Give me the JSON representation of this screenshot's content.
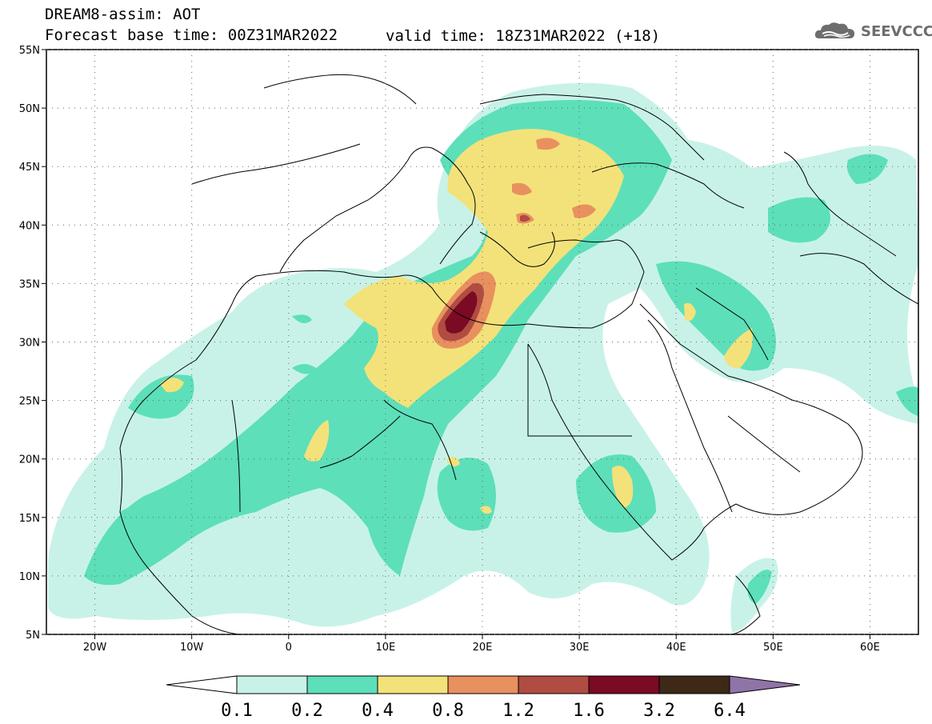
{
  "header": {
    "title": "DREAM8-assim: AOT",
    "forecast_base": "Forecast base time: 00Z31MAR2022",
    "valid_time": "valid time: 18Z31MAR2022 (+18)"
  },
  "logo": {
    "text": "SEEVCCC",
    "icon": "cloud-icon"
  },
  "map": {
    "lon_range": [
      -25,
      65
    ],
    "lat_range": [
      5,
      55
    ],
    "lat_ticks": [
      "55N",
      "50N",
      "45N",
      "40N",
      "35N",
      "30N",
      "25N",
      "20N",
      "15N",
      "10N",
      "5N"
    ],
    "lon_ticks": [
      "20W",
      "10W",
      "0",
      "10E",
      "20E",
      "30E",
      "40E",
      "50E",
      "60E"
    ],
    "field": "AOT"
  },
  "colorbar": {
    "colors": [
      "#ffffff",
      "#c8f2e8",
      "#5ddfba",
      "#f3e27a",
      "#e9905f",
      "#b04c42",
      "#7b0a24",
      "#3e2817",
      "#8f74a8"
    ],
    "labels": [
      "0.1",
      "0.2",
      "0.4",
      "0.8",
      "1.2",
      "1.6",
      "3.2",
      "6.4"
    ]
  }
}
